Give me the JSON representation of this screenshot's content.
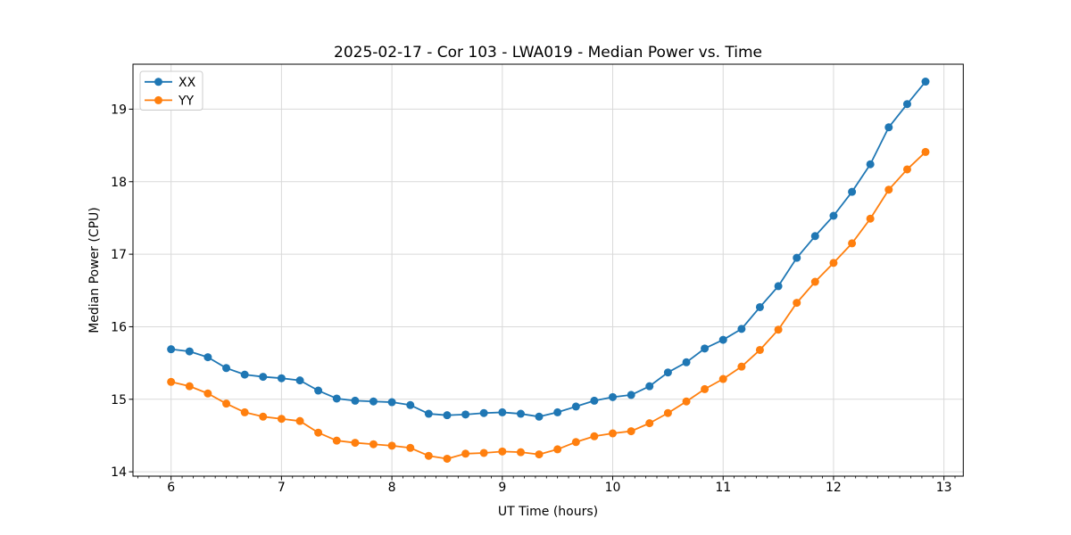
{
  "figure": {
    "background": "#ffffff"
  },
  "chart_data": {
    "type": "line",
    "title": "2025-02-17 - Cor 103 - LWA019 - Median Power vs. Time",
    "xlabel": "UT Time (hours)",
    "ylabel": "Median Power (CPU)",
    "xlim": [
      5.655,
      13.175
    ],
    "ylim": [
      13.94,
      19.62
    ],
    "xticks": [
      6,
      7,
      8,
      9,
      10,
      11,
      12,
      13
    ],
    "yticks": [
      14,
      15,
      16,
      17,
      18,
      19
    ],
    "x_minor_tick_step": 0.1,
    "grid": true,
    "legend_position": "upper-left",
    "marker": "o",
    "x": [
      6.0,
      6.167,
      6.333,
      6.5,
      6.667,
      6.833,
      7.0,
      7.167,
      7.333,
      7.5,
      7.667,
      7.833,
      8.0,
      8.167,
      8.333,
      8.5,
      8.667,
      8.833,
      9.0,
      9.167,
      9.333,
      9.5,
      9.667,
      9.833,
      10.0,
      10.167,
      10.333,
      10.5,
      10.667,
      10.833,
      11.0,
      11.167,
      11.333,
      11.5,
      11.667,
      11.833,
      12.0,
      12.167,
      12.333,
      12.5,
      12.667,
      12.833
    ],
    "series": [
      {
        "name": "XX",
        "color": "#1f77b4",
        "values": [
          15.69,
          15.66,
          15.58,
          15.43,
          15.34,
          15.31,
          15.29,
          15.26,
          15.12,
          15.01,
          14.98,
          14.97,
          14.96,
          14.92,
          14.8,
          14.78,
          14.79,
          14.81,
          14.82,
          14.8,
          14.76,
          14.82,
          14.9,
          14.98,
          15.03,
          15.06,
          15.18,
          15.37,
          15.51,
          15.7,
          15.82,
          15.97,
          16.27,
          16.56,
          16.95,
          17.25,
          17.53,
          17.86,
          18.24,
          18.75,
          19.07,
          19.38
        ]
      },
      {
        "name": "YY",
        "color": "#ff7f0e",
        "values": [
          15.24,
          15.18,
          15.08,
          14.94,
          14.82,
          14.76,
          14.73,
          14.7,
          14.54,
          14.43,
          14.4,
          14.38,
          14.36,
          14.33,
          14.22,
          14.18,
          14.25,
          14.26,
          14.28,
          14.27,
          14.24,
          14.31,
          14.41,
          14.49,
          14.53,
          14.56,
          14.67,
          14.81,
          14.97,
          15.14,
          15.28,
          15.45,
          15.68,
          15.96,
          16.33,
          16.62,
          16.88,
          17.15,
          17.49,
          17.89,
          18.17,
          18.41
        ]
      }
    ]
  },
  "style": {
    "grid_color": "#d9d9d9",
    "frame_color": "#000000",
    "tick_color": "#000000",
    "text_color": "#000000",
    "legend_border_color": "#cccccc",
    "legend_background": "#ffffff"
  }
}
